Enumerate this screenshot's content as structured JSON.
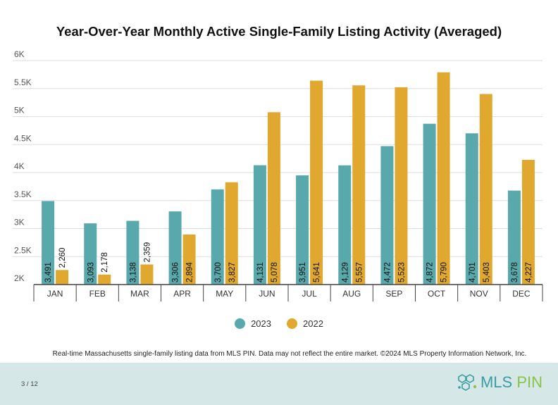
{
  "page_number": "3 / 12",
  "source_note": "Real-time Massachusetts single-family listing data from MLS PIN. Data may not reflect the entire market. ©2024 MLS Property Information Network, Inc.",
  "logo": {
    "text_main": "MLS",
    "text_accent": "PIN",
    "icon": "network-cluster-icon"
  },
  "colors": {
    "2023": "#59a8ac",
    "2022": "#e0a82e",
    "footer": "#d6e7e7"
  },
  "chart_data": {
    "type": "bar",
    "title": "Year-Over-Year Monthly Active Single-Family Listing Activity (Averaged)",
    "categories": [
      "JAN",
      "FEB",
      "MAR",
      "APR",
      "MAY",
      "JUN",
      "JUL",
      "AUG",
      "SEP",
      "OCT",
      "NOV",
      "DEC"
    ],
    "series": [
      {
        "name": "2023",
        "color": "#59a8ac",
        "values": [
          3491,
          3093,
          3138,
          3306,
          3700,
          4131,
          3951,
          4129,
          4472,
          4872,
          4701,
          3678
        ]
      },
      {
        "name": "2022",
        "color": "#e0a82e",
        "values": [
          2260,
          2178,
          2359,
          2894,
          3827,
          5078,
          5641,
          5557,
          5523,
          5790,
          5403,
          4227
        ]
      }
    ],
    "data_labels": {
      "2023": [
        "3,491",
        "3,093",
        "3,138",
        "3,306",
        "3,700",
        "4,131",
        "3,951",
        "4,129",
        "4,472",
        "4,872",
        "4,701",
        "3,678"
      ],
      "2022": [
        "2,260",
        "2,178",
        "2,359",
        "2,894",
        "3,827",
        "5,078",
        "5,641",
        "5,557",
        "5,523",
        "5,790",
        "5,403",
        "4,227"
      ]
    },
    "ylim": [
      2000,
      6000
    ],
    "yticks": [
      2000,
      2500,
      3000,
      3500,
      4000,
      4500,
      5000,
      5500,
      6000
    ],
    "ytick_labels": [
      "2K",
      "2.5K",
      "3K",
      "3.5K",
      "4K",
      "4.5K",
      "5K",
      "5.5K",
      "6K"
    ],
    "xlabel": "",
    "ylabel": "",
    "grid": true,
    "legend": "bottom"
  }
}
